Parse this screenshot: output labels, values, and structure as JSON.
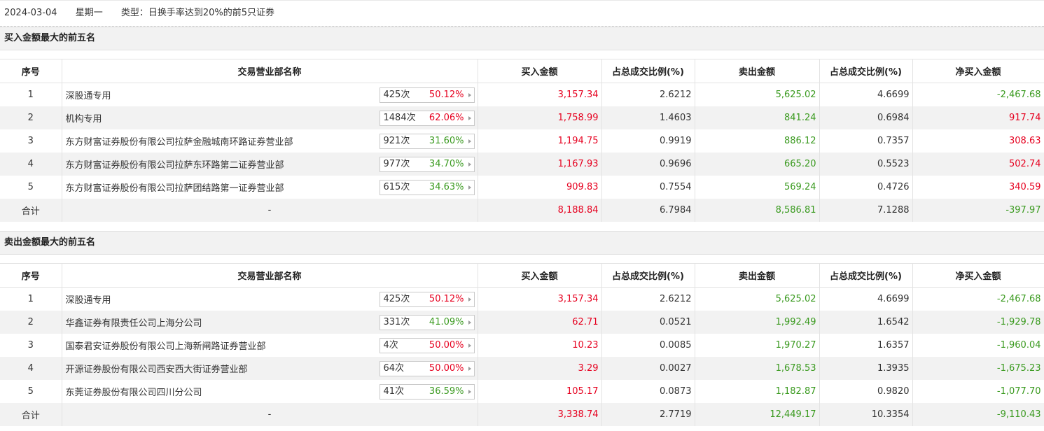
{
  "topbar": {
    "date": "2024-03-04",
    "weekday": "星期一",
    "type_text": "类型：日换手率达到20%的前5只证券"
  },
  "headers": [
    "序号",
    "交易营业部名称",
    "买入金额",
    "占总成交比例(%)",
    "卖出金额",
    "占总成交比例(%)",
    "净买入金额"
  ],
  "colors": {
    "up": "#e6001f",
    "down": "#3a9a1f"
  },
  "buy_section": {
    "title": "买入金额最大的前五名",
    "rows": [
      {
        "idx": "1",
        "name": "深股通专用",
        "count": "425次",
        "rate": "50.12%",
        "rate_dir": "red",
        "buy": "3,157.34",
        "buy_pct": "2.6212",
        "sell": "5,625.02",
        "sell_pct": "4.6699",
        "net": "-2,467.68",
        "net_dir": "green"
      },
      {
        "idx": "2",
        "name": "机构专用",
        "count": "1484次",
        "rate": "62.06%",
        "rate_dir": "red",
        "buy": "1,758.99",
        "buy_pct": "1.4603",
        "sell": "841.24",
        "sell_pct": "0.6984",
        "net": "917.74",
        "net_dir": "red"
      },
      {
        "idx": "3",
        "name": "东方财富证券股份有限公司拉萨金融城南环路证券营业部",
        "count": "921次",
        "rate": "31.60%",
        "rate_dir": "green",
        "buy": "1,194.75",
        "buy_pct": "0.9919",
        "sell": "886.12",
        "sell_pct": "0.7357",
        "net": "308.63",
        "net_dir": "red"
      },
      {
        "idx": "4",
        "name": "东方财富证券股份有限公司拉萨东环路第二证券营业部",
        "count": "977次",
        "rate": "34.70%",
        "rate_dir": "green",
        "buy": "1,167.93",
        "buy_pct": "0.9696",
        "sell": "665.20",
        "sell_pct": "0.5523",
        "net": "502.74",
        "net_dir": "red"
      },
      {
        "idx": "5",
        "name": "东方财富证券股份有限公司拉萨团结路第一证券营业部",
        "count": "615次",
        "rate": "34.63%",
        "rate_dir": "green",
        "buy": "909.83",
        "buy_pct": "0.7554",
        "sell": "569.24",
        "sell_pct": "0.4726",
        "net": "340.59",
        "net_dir": "red"
      }
    ],
    "total": {
      "label": "合计",
      "name": "-",
      "buy": "8,188.84",
      "buy_pct": "6.7984",
      "sell": "8,586.81",
      "sell_pct": "7.1288",
      "net": "-397.97",
      "net_dir": "green"
    }
  },
  "sell_section": {
    "title": "卖出金额最大的前五名",
    "rows": [
      {
        "idx": "1",
        "name": "深股通专用",
        "count": "425次",
        "rate": "50.12%",
        "rate_dir": "red",
        "buy": "3,157.34",
        "buy_pct": "2.6212",
        "sell": "5,625.02",
        "sell_pct": "4.6699",
        "net": "-2,467.68",
        "net_dir": "green"
      },
      {
        "idx": "2",
        "name": "华鑫证券有限责任公司上海分公司",
        "count": "331次",
        "rate": "41.09%",
        "rate_dir": "green",
        "buy": "62.71",
        "buy_pct": "0.0521",
        "sell": "1,992.49",
        "sell_pct": "1.6542",
        "net": "-1,929.78",
        "net_dir": "green"
      },
      {
        "idx": "3",
        "name": "国泰君安证券股份有限公司上海新闸路证券营业部",
        "count": "4次",
        "rate": "50.00%",
        "rate_dir": "red",
        "buy": "10.23",
        "buy_pct": "0.0085",
        "sell": "1,970.27",
        "sell_pct": "1.6357",
        "net": "-1,960.04",
        "net_dir": "green"
      },
      {
        "idx": "4",
        "name": "开源证券股份有限公司西安西大街证券营业部",
        "count": "64次",
        "rate": "50.00%",
        "rate_dir": "red",
        "buy": "3.29",
        "buy_pct": "0.0027",
        "sell": "1,678.53",
        "sell_pct": "1.3935",
        "net": "-1,675.23",
        "net_dir": "green"
      },
      {
        "idx": "5",
        "name": "东莞证券股份有限公司四川分公司",
        "count": "41次",
        "rate": "36.59%",
        "rate_dir": "green",
        "buy": "105.17",
        "buy_pct": "0.0873",
        "sell": "1,182.87",
        "sell_pct": "0.9820",
        "net": "-1,077.70",
        "net_dir": "green"
      }
    ],
    "total": {
      "label": "合计",
      "name": "-",
      "buy": "3,338.74",
      "buy_pct": "2.7719",
      "sell": "12,449.17",
      "sell_pct": "10.3354",
      "net": "-9,110.43",
      "net_dir": "green"
    }
  }
}
